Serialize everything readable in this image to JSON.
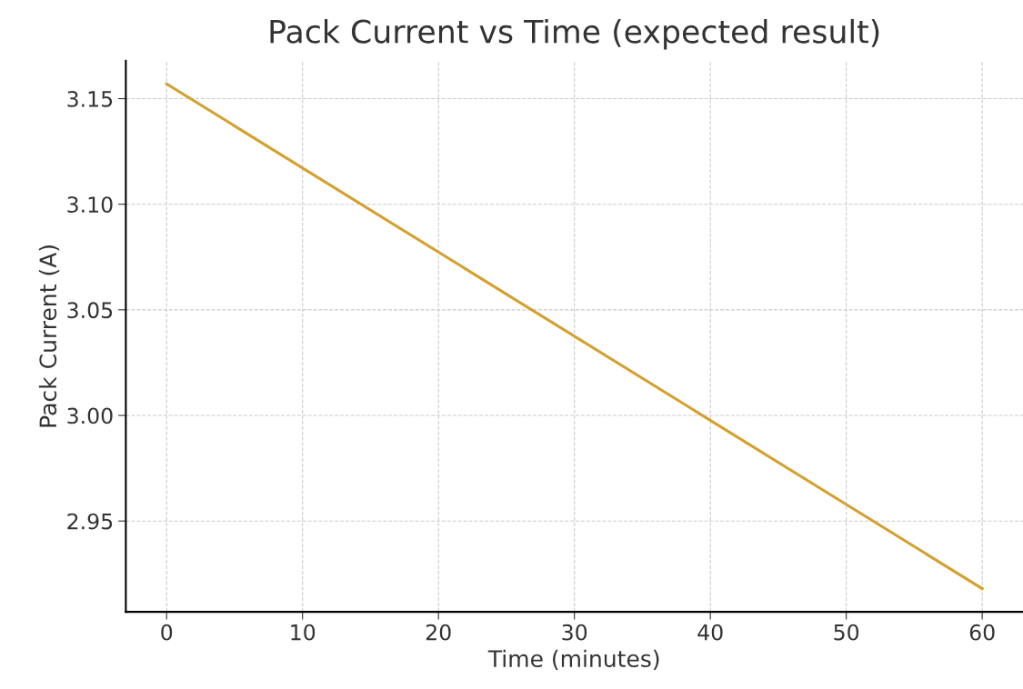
{
  "chart_data": {
    "type": "line",
    "title": "Pack Current vs Time (expected result)",
    "xlabel": "Time (minutes)",
    "ylabel": "Pack Current (A)",
    "x": [
      0,
      60
    ],
    "series": [
      {
        "color": "#d4a030",
        "values": [
          3.157,
          2.918
        ]
      }
    ],
    "xlim": [
      -3,
      63
    ],
    "xticks": [
      0,
      10,
      20,
      30,
      40,
      50,
      60
    ],
    "ylim": [
      2.907,
      3.168
    ],
    "yticks": [
      {
        "value": 2.95,
        "label": "2.95"
      },
      {
        "value": 3.0,
        "label": "3.00"
      },
      {
        "value": 3.05,
        "label": "3.05"
      },
      {
        "value": 3.1,
        "label": "3.10"
      },
      {
        "value": 3.15,
        "label": "3.15"
      }
    ],
    "grid": true,
    "line_style": "solid",
    "marker": "none"
  }
}
